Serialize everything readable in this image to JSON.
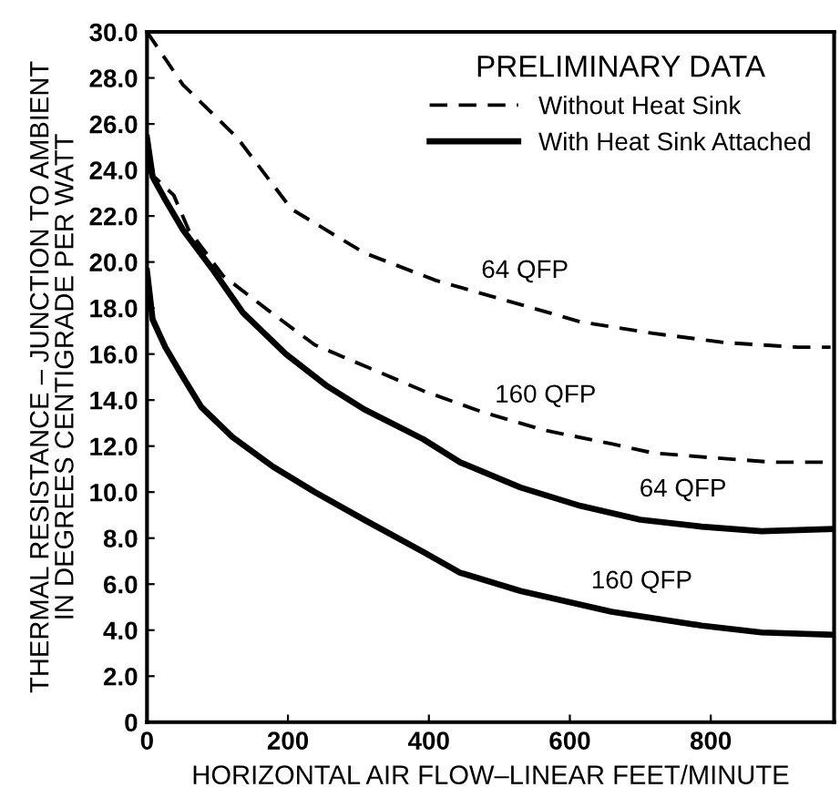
{
  "chart_data": {
    "type": "line",
    "xlabel": "HORIZONTAL AIR FLOW–LINEAR FEET/MINUTE",
    "ylabel": "THERMAL RESISTANCE – JUNCTION TO AMBIENT\nIN DEGREES CENTIGRADE PER WATT",
    "legend_title": "PRELIMINARY DATA",
    "legend": "top right",
    "grid": false,
    "marker": "none",
    "xlim": [
      0,
      975
    ],
    "xticks": [
      0,
      200,
      400,
      600,
      800
    ],
    "ylim": [
      0,
      30
    ],
    "yticks": [
      {
        "value": 0,
        "label": "0"
      },
      {
        "value": 2,
        "label": "2.0"
      },
      {
        "value": 4,
        "label": "4.0"
      },
      {
        "value": 6,
        "label": "6.0"
      },
      {
        "value": 8,
        "label": "8.0"
      },
      {
        "value": 10,
        "label": "10.0"
      },
      {
        "value": 12,
        "label": "12.0"
      },
      {
        "value": 14,
        "label": "14.0"
      },
      {
        "value": 16,
        "label": "16.0"
      },
      {
        "value": 18,
        "label": "18.0"
      },
      {
        "value": 20,
        "label": "20.0"
      },
      {
        "value": 22,
        "label": "22.0"
      },
      {
        "value": 24,
        "label": "24.0"
      },
      {
        "value": 26,
        "label": "26.0"
      },
      {
        "value": 28,
        "label": "28.0"
      },
      {
        "value": 30,
        "label": "30.0"
      }
    ],
    "series": [
      {
        "name": "Without Heat Sink",
        "color": "#000000",
        "line_style": "dashed",
        "x": [
          0,
          51,
          128,
          205,
          308,
          410,
          513,
          615,
          718,
          820,
          923,
          970
        ],
        "values": [
          30.0,
          27.7,
          25.4,
          22.3,
          20.4,
          19.2,
          18.3,
          17.4,
          16.9,
          16.5,
          16.3,
          16.3
        ]
      },
      {
        "color": "#000000",
        "line_style": "dashed",
        "x": [
          0,
          38,
          59,
          108,
          172,
          238,
          315,
          392,
          474,
          562,
          659,
          718,
          800,
          887,
          962
        ],
        "values": [
          24.0,
          22.9,
          21.4,
          19.4,
          17.9,
          16.4,
          15.4,
          14.4,
          13.5,
          12.7,
          12.1,
          11.7,
          11.5,
          11.3,
          11.3
        ]
      },
      {
        "name": "With Heat Sink Attached",
        "color": "#000000",
        "line_style": "solid",
        "x": [
          0,
          8,
          26,
          51,
          95,
          136,
          197,
          256,
          308,
          392,
          444,
          530,
          615,
          700,
          787,
          872,
          974
        ],
        "values": [
          25.4,
          23.7,
          22.7,
          21.4,
          19.6,
          17.8,
          16.0,
          14.6,
          13.6,
          12.3,
          11.3,
          10.2,
          9.4,
          8.8,
          8.5,
          8.3,
          8.4
        ]
      },
      {
        "color": "#000000",
        "line_style": "solid",
        "x": [
          0,
          8,
          26,
          51,
          77,
          121,
          179,
          238,
          308,
          392,
          444,
          530,
          659,
          787,
          872,
          974
        ],
        "values": [
          19.6,
          17.5,
          16.3,
          15.0,
          13.7,
          12.4,
          11.1,
          10.0,
          8.8,
          7.4,
          6.5,
          5.7,
          4.8,
          4.2,
          3.9,
          3.8
        ]
      }
    ],
    "annotations": [
      "64 QFP",
      "160 QFP",
      "64 QFP",
      "160 QFP"
    ]
  }
}
